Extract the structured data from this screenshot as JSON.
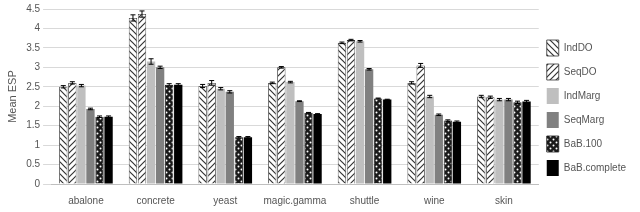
{
  "chart_data": {
    "type": "bar",
    "y_label": "Mean ESP",
    "categories": [
      "abalone",
      "concrete",
      "yeast",
      "magic.gamma",
      "shuttle",
      "wine",
      "skin"
    ],
    "series": [
      {
        "name": "IndDO",
        "color": "#333333",
        "values": [
          2.5,
          4.27,
          2.52,
          2.6,
          3.63,
          2.6,
          2.25
        ],
        "errors": [
          0.03,
          0.08,
          0.04,
          0.02,
          0.02,
          0.03,
          0.03
        ]
      },
      {
        "name": "SeqDO",
        "color": "#333333",
        "values": [
          2.6,
          4.37,
          2.6,
          3.0,
          3.7,
          3.05,
          2.23
        ],
        "errors": [
          0.03,
          0.08,
          0.06,
          0.02,
          0.02,
          0.05,
          0.03
        ]
      },
      {
        "name": "IndMarg",
        "color": "#bfbfbf",
        "values": [
          2.53,
          3.15,
          2.45,
          2.62,
          3.67,
          2.25,
          2.17
        ],
        "errors": [
          0.03,
          0.07,
          0.03,
          0.02,
          0.02,
          0.03,
          0.03
        ]
      },
      {
        "name": "SeqMarg",
        "color": "#808080",
        "values": [
          1.93,
          3.0,
          2.37,
          2.13,
          2.95,
          1.78,
          2.17
        ],
        "errors": [
          0.02,
          0.03,
          0.03,
          0.01,
          0.02,
          0.02,
          0.03
        ]
      },
      {
        "name": "BaB.100",
        "color": "#1a1a1a",
        "values": [
          1.73,
          2.55,
          1.2,
          1.83,
          2.2,
          1.63,
          2.1
        ],
        "errors": [
          0.02,
          0.03,
          0.02,
          0.01,
          0.01,
          0.02,
          0.03
        ]
      },
      {
        "name": "BaB.complete",
        "color": "#000000",
        "values": [
          1.73,
          2.55,
          1.2,
          1.8,
          2.17,
          1.6,
          2.12
        ],
        "errors": [
          0.02,
          0.03,
          0.02,
          0.01,
          0.01,
          0.02,
          0.03
        ]
      }
    ],
    "ylim": [
      0,
      4.5
    ],
    "yticks": [
      0,
      0.5,
      1,
      1.5,
      2,
      2.5,
      3,
      3.5,
      4,
      4.5
    ],
    "grid": true,
    "legend": "right"
  }
}
